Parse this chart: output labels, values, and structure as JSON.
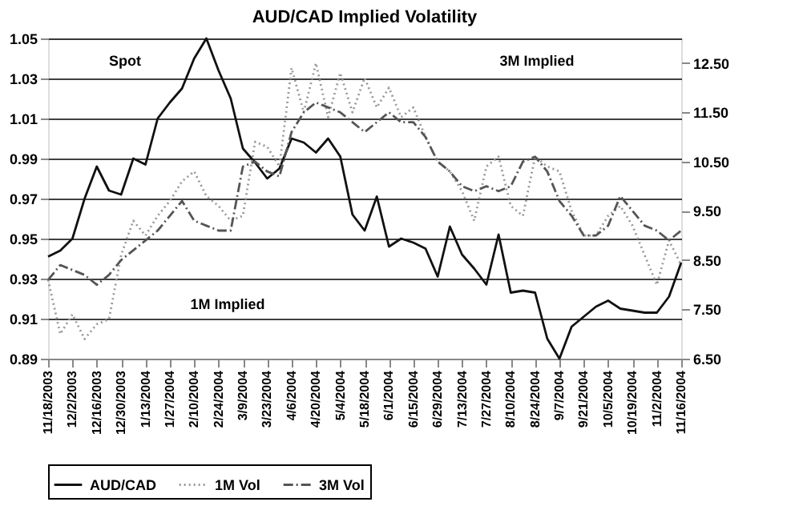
{
  "chart_data": {
    "type": "line",
    "title": "AUD/CAD Implied Volatility",
    "x": [
      "2003-11-18",
      "2003-11-25",
      "2003-12-02",
      "2003-12-09",
      "2003-12-16",
      "2003-12-23",
      "2003-12-30",
      "2004-01-06",
      "2004-01-13",
      "2004-01-20",
      "2004-01-27",
      "2004-02-03",
      "2004-02-10",
      "2004-02-17",
      "2004-02-24",
      "2004-03-02",
      "2004-03-09",
      "2004-03-16",
      "2004-03-23",
      "2004-03-30",
      "2004-04-06",
      "2004-04-13",
      "2004-04-20",
      "2004-04-27",
      "2004-05-04",
      "2004-05-11",
      "2004-05-18",
      "2004-05-25",
      "2004-06-01",
      "2004-06-08",
      "2004-06-15",
      "2004-06-22",
      "2004-06-29",
      "2004-07-06",
      "2004-07-13",
      "2004-07-20",
      "2004-07-27",
      "2004-08-03",
      "2004-08-10",
      "2004-08-17",
      "2004-08-24",
      "2004-08-31",
      "2004-09-07",
      "2004-09-14",
      "2004-09-21",
      "2004-09-28",
      "2004-10-05",
      "2004-10-12",
      "2004-10-19",
      "2004-10-26",
      "2004-11-02",
      "2004-11-09",
      "2004-11-16"
    ],
    "series": [
      {
        "name": "AUD/CAD",
        "color": "#111111",
        "line_style": "solid",
        "values": [
          0.941,
          0.944,
          0.95,
          0.97,
          0.986,
          0.974,
          0.972,
          0.99,
          0.987,
          1.01,
          1.018,
          1.025,
          1.04,
          1.05,
          1.034,
          1.02,
          0.995,
          0.988,
          0.98,
          0.985,
          1.0,
          0.998,
          0.993,
          1.0,
          0.991,
          0.962,
          0.954,
          0.971,
          0.946,
          0.95,
          0.948,
          0.945,
          0.931,
          0.956,
          0.942,
          0.935,
          0.927,
          0.952,
          0.923,
          0.924,
          0.923,
          0.9,
          0.89,
          0.906,
          0.911,
          0.916,
          0.919,
          0.915,
          0.914,
          0.913,
          0.913,
          0.921,
          0.938
        ]
      },
      {
        "name": "1M Vol",
        "color": "#999999",
        "line_style": "dotted",
        "axis": "y2",
        "values": [
          8.1,
          7.0,
          7.4,
          6.9,
          7.2,
          7.3,
          8.6,
          9.3,
          9.0,
          9.4,
          9.7,
          10.1,
          10.3,
          9.8,
          9.6,
          9.3,
          9.4,
          10.9,
          10.8,
          10.4,
          12.4,
          11.5,
          12.5,
          11.4,
          12.3,
          11.5,
          12.2,
          11.6,
          12.0,
          11.4,
          11.6,
          11.0,
          10.5,
          10.3,
          9.9,
          9.3,
          10.4,
          10.6,
          9.6,
          9.4,
          10.6,
          10.4,
          10.3,
          9.5,
          9.0,
          9.0,
          9.4,
          9.6,
          9.2,
          8.6,
          8.0,
          8.9,
          8.4
        ]
      },
      {
        "name": "3M Vol",
        "color": "#555555",
        "line_style": "dashed",
        "axis": "y2",
        "values": [
          8.1,
          8.4,
          8.3,
          8.2,
          8.0,
          8.2,
          8.5,
          8.7,
          8.9,
          9.1,
          9.4,
          9.7,
          9.3,
          9.2,
          9.1,
          9.1,
          10.4,
          10.5,
          10.3,
          10.2,
          11.1,
          11.5,
          11.7,
          11.6,
          11.5,
          11.3,
          11.1,
          11.3,
          11.5,
          11.3,
          11.3,
          11.0,
          10.5,
          10.3,
          10.0,
          9.9,
          10.0,
          9.9,
          10.0,
          10.5,
          10.6,
          10.3,
          9.7,
          9.4,
          9.0,
          9.0,
          9.2,
          9.8,
          9.5,
          9.2,
          9.1,
          8.9,
          9.1
        ]
      }
    ],
    "xlim": [
      "2003-11-18",
      "2004-11-16"
    ],
    "xticks": [
      {
        "value": "2003-11-18",
        "label": "11/18/2003"
      },
      {
        "value": "2003-12-02",
        "label": "12/2/2003"
      },
      {
        "value": "2003-12-16",
        "label": "12/16/2003"
      },
      {
        "value": "2003-12-30",
        "label": "12/30/2003"
      },
      {
        "value": "2004-01-13",
        "label": "1/13/2004"
      },
      {
        "value": "2004-01-27",
        "label": "1/27/2004"
      },
      {
        "value": "2004-02-10",
        "label": "2/10/2004"
      },
      {
        "value": "2004-02-24",
        "label": "2/24/2004"
      },
      {
        "value": "2004-03-09",
        "label": "3/9/2004"
      },
      {
        "value": "2004-03-23",
        "label": "3/23/2004"
      },
      {
        "value": "2004-04-06",
        "label": "4/6/2004"
      },
      {
        "value": "2004-04-20",
        "label": "4/20/2004"
      },
      {
        "value": "2004-05-04",
        "label": "5/4/2004"
      },
      {
        "value": "2004-05-18",
        "label": "5/18/2004"
      },
      {
        "value": "2004-06-01",
        "label": "6/1/2004"
      },
      {
        "value": "2004-06-15",
        "label": "6/15/2004"
      },
      {
        "value": "2004-06-29",
        "label": "6/29/2004"
      },
      {
        "value": "2004-07-13",
        "label": "7/13/2004"
      },
      {
        "value": "2004-07-27",
        "label": "7/27/2004"
      },
      {
        "value": "2004-08-10",
        "label": "8/10/2004"
      },
      {
        "value": "2004-08-24",
        "label": "8/24/2004"
      },
      {
        "value": "2004-09-07",
        "label": "9/7/2004"
      },
      {
        "value": "2004-09-21",
        "label": "9/21/2004"
      },
      {
        "value": "2004-10-05",
        "label": "10/5/2004"
      },
      {
        "value": "2004-10-19",
        "label": "10/19/2004"
      },
      {
        "value": "2004-11-02",
        "label": "11/2/2004"
      },
      {
        "value": "2004-11-16",
        "label": "11/16/2004"
      }
    ],
    "ylim": [
      0.89,
      1.05
    ],
    "yticks": [
      0.89,
      0.91,
      0.93,
      0.95,
      0.97,
      0.99,
      1.01,
      1.03,
      1.05
    ],
    "y2lim": [
      6.5,
      13.0
    ],
    "y2ticks": [
      {
        "value": 6.5,
        "label": "6.50"
      },
      {
        "value": 7.5,
        "label": "7.50"
      },
      {
        "value": 8.5,
        "label": "8.50"
      },
      {
        "value": 9.5,
        "label": "9.50"
      },
      {
        "value": 10.5,
        "label": "10.50"
      },
      {
        "value": 11.5,
        "label": "11.50"
      },
      {
        "value": 12.5,
        "label": "12.50"
      }
    ],
    "grid": "y",
    "legend": "bottom",
    "marker": "none",
    "annotations": [
      "Spot",
      "1M Implied",
      "3M Implied"
    ]
  }
}
